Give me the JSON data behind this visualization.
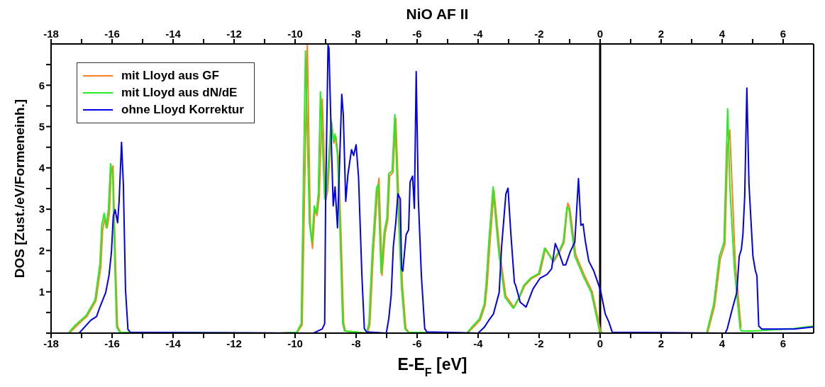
{
  "chart_data": {
    "type": "line",
    "title": "NiO AF II",
    "xlabel": "E-E$_{F}$ [eV]",
    "ylabel": "DOS [Zust./eV/Formeneinh.]",
    "xlim": [
      -18,
      7
    ],
    "ylim": [
      0,
      7
    ],
    "xticks": [
      -18,
      {
        "value": -17,
        "label": null
      },
      -16,
      {
        "value": -15,
        "label": null
      },
      -14,
      {
        "value": -13,
        "label": null
      },
      -12,
      {
        "value": -11,
        "label": null
      },
      -10,
      {
        "value": -9,
        "label": null
      },
      -8,
      {
        "value": -7,
        "label": null
      },
      -6,
      {
        "value": -5,
        "label": null
      },
      -4,
      {
        "value": -3,
        "label": null
      },
      -2,
      {
        "value": -1,
        "label": null
      },
      0,
      {
        "value": 1,
        "label": null
      },
      2,
      {
        "value": 3,
        "label": null
      },
      4,
      {
        "value": 5,
        "label": null
      },
      6
    ],
    "x2lim": [
      -18,
      7
    ],
    "x2ticks": [
      -18,
      {
        "value": -17,
        "label": null
      },
      -16,
      {
        "value": -15,
        "label": null
      },
      -14,
      {
        "value": -13,
        "label": null
      },
      -12,
      {
        "value": -11,
        "label": null
      },
      -10,
      {
        "value": -9,
        "label": null
      },
      -8,
      {
        "value": -7,
        "label": null
      },
      -6,
      {
        "value": -5,
        "label": null
      },
      -4,
      {
        "value": -3,
        "label": null
      },
      -2,
      {
        "value": -1,
        "label": null
      },
      0,
      {
        "value": 1,
        "label": null
      },
      2,
      {
        "value": 3,
        "label": null
      },
      4,
      {
        "value": 5,
        "label": null
      },
      6
    ],
    "yticks": [
      {
        "value": 0,
        "label": null
      },
      {
        "value": 0.5,
        "label": null
      },
      1,
      {
        "value": 1.5,
        "label": null
      },
      2,
      {
        "value": 2.5,
        "label": null
      },
      3,
      {
        "value": 3.5,
        "label": null
      },
      4,
      {
        "value": 4.5,
        "label": null
      },
      5,
      {
        "value": 5.5,
        "label": null
      },
      6,
      {
        "value": 6.5,
        "label": null
      }
    ],
    "grid": false,
    "legend": "top left",
    "ref_lines": [
      {
        "axis": "x",
        "value": 0,
        "label": null,
        "color": "#000000"
      }
    ],
    "series": [
      {
        "name": "mit Lloyd aus GF",
        "color": "#ff7f20",
        "x": [
          -18,
          -17.4,
          -17.2,
          -16.82,
          -16.53,
          -16.37,
          -16.31,
          -16.23,
          -16.16,
          -16.09,
          -16.03,
          -15.97,
          -15.88,
          -15.82,
          -15.72,
          -10.5,
          -9.93,
          -9.77,
          -9.6,
          -9.5,
          -9.43,
          -9.35,
          -9.28,
          -9.21,
          -9.11,
          -9.0,
          -8.93,
          -8.8,
          -8.73,
          -8.66,
          -8.58,
          -8.49,
          -8.41,
          -8.35,
          -7.63,
          -7.55,
          -7.44,
          -7.3,
          -7.25,
          -7.15,
          -7.05,
          -6.96,
          -6.9,
          -6.79,
          -6.7,
          -6.6,
          -6.48,
          -6.37,
          -6.27,
          -4.34,
          -4.15,
          -3.93,
          -3.77,
          -3.7,
          -3.62,
          -3.48,
          -3.39,
          -3.28,
          -3.09,
          -2.82,
          -2.63,
          -2.47,
          -2.25,
          -1.98,
          -1.79,
          -1.52,
          -1.33,
          -1.18,
          -1.06,
          -0.99,
          -0.8,
          -0.53,
          -0.26,
          0.01,
          0.08,
          3.52,
          3.75,
          3.94,
          4.09,
          4.18,
          4.25,
          4.43,
          4.62
        ],
        "values": [
          0,
          0,
          0.15,
          0.41,
          0.78,
          1.6,
          2.5,
          2.8,
          2.55,
          2.9,
          3.9,
          4.05,
          1.5,
          0.16,
          0.02,
          0,
          0.02,
          0.2,
          7.0,
          2.6,
          2.05,
          3.0,
          2.85,
          3.3,
          5.67,
          3.2,
          3.45,
          5.1,
          4.6,
          4.75,
          4.25,
          2.3,
          0.25,
          0.05,
          0,
          0.2,
          1.9,
          3.45,
          3.75,
          1.4,
          2.4,
          2.75,
          3.8,
          3.9,
          5.2,
          3.2,
          1.15,
          0.12,
          0.02,
          0,
          0.15,
          0.32,
          0.68,
          1.2,
          2.1,
          3.45,
          2.75,
          1.9,
          0.9,
          0.62,
          0.88,
          1.15,
          1.32,
          1.43,
          2.05,
          1.73,
          1.96,
          2.2,
          3.15,
          3.0,
          1.9,
          1.42,
          1.0,
          0.07,
          0,
          0,
          0.65,
          1.8,
          2.15,
          4.5,
          4.92,
          1.7,
          0.13
        ]
      },
      {
        "name": "mit Lloyd aus dN/dE",
        "color": "#22ee22",
        "x": [
          -18,
          -17.43,
          -17.24,
          -16.85,
          -16.56,
          -16.4,
          -16.34,
          -16.26,
          -16.19,
          -16.12,
          -16.05,
          -15.98,
          -15.9,
          -15.85,
          -15.75,
          -10.5,
          -9.95,
          -9.8,
          -9.66,
          -9.53,
          -9.45,
          -9.37,
          -9.3,
          -9.24,
          -9.17,
          -9.03,
          -8.96,
          -8.82,
          -8.75,
          -8.69,
          -8.61,
          -8.52,
          -8.44,
          -8.38,
          -7.66,
          -7.58,
          -7.47,
          -7.33,
          -7.28,
          -7.18,
          -7.08,
          -6.99,
          -6.93,
          -6.82,
          -6.73,
          -6.63,
          -6.51,
          -6.4,
          -6.3,
          -4.37,
          -4.18,
          -3.96,
          -3.8,
          -3.73,
          -3.65,
          -3.51,
          -3.42,
          -3.31,
          -3.12,
          -2.85,
          -2.66,
          -2.5,
          -2.28,
          -2.01,
          -1.82,
          -1.55,
          -1.36,
          -1.21,
          -1.09,
          -1.02,
          -0.83,
          -0.56,
          -0.29,
          -0.02,
          0.05,
          3.49,
          3.72,
          3.91,
          4.06,
          4.18,
          4.25,
          4.4,
          4.59,
          4.63,
          5.04,
          6.35,
          7.0
        ],
        "values": [
          0,
          0,
          0.17,
          0.43,
          0.8,
          1.68,
          2.6,
          2.9,
          2.55,
          3.0,
          4.1,
          3.83,
          1.4,
          0.14,
          0.02,
          0,
          0.02,
          0.23,
          6.83,
          2.67,
          2.2,
          3.08,
          2.9,
          3.37,
          5.84,
          3.25,
          3.49,
          5.17,
          4.65,
          4.82,
          4.3,
          2.27,
          0.23,
          0.05,
          0,
          0.23,
          1.97,
          3.51,
          3.6,
          1.45,
          2.44,
          2.79,
          3.86,
          3.93,
          5.29,
          3.14,
          1.1,
          0.11,
          0.02,
          0,
          0.17,
          0.34,
          0.7,
          1.27,
          2.2,
          3.54,
          2.73,
          1.86,
          0.87,
          0.6,
          0.87,
          1.16,
          1.33,
          1.45,
          2.06,
          1.74,
          1.97,
          2.2,
          3.05,
          3.0,
          1.86,
          1.39,
          0.98,
          0.05,
          0,
          0,
          0.69,
          1.86,
          2.2,
          5.43,
          3.6,
          1.56,
          0.11,
          0.05,
          0.05,
          0.11,
          0.17
        ]
      },
      {
        "name": "ohne Lloyd Korrektur",
        "color": "#0000ee",
        "x": [
          -18,
          -17.08,
          -16.7,
          -16.51,
          -16.4,
          -16.21,
          -16.1,
          -16.02,
          -15.96,
          -15.9,
          -15.82,
          -15.77,
          -15.69,
          -15.63,
          -15.56,
          -15.48,
          -15.4,
          -9.4,
          -9.11,
          -9.03,
          -9.0,
          -8.92,
          -8.89,
          -8.8,
          -8.75,
          -8.69,
          -8.61,
          -8.47,
          -8.42,
          -8.34,
          -8.27,
          -8.15,
          -8.08,
          -8.0,
          -7.92,
          -7.81,
          -7.73,
          -7.66,
          -7.01,
          -6.93,
          -6.85,
          -6.78,
          -6.7,
          -6.63,
          -6.55,
          -6.51,
          -6.47,
          -6.36,
          -6.28,
          -6.23,
          -6.15,
          -6.09,
          -6.03,
          -5.96,
          -5.86,
          -5.75,
          -5.68,
          -4.0,
          -3.8,
          -3.65,
          -3.5,
          -3.31,
          -3.23,
          -3.09,
          -3.02,
          -2.93,
          -2.81,
          -2.77,
          -2.62,
          -2.43,
          -2.2,
          -1.97,
          -1.74,
          -1.59,
          -1.47,
          -1.36,
          -1.21,
          -1.13,
          -0.98,
          -0.83,
          -0.71,
          -0.63,
          -0.56,
          -0.48,
          -0.37,
          -0.21,
          0.01,
          0.17,
          0.28,
          0.4,
          4.1,
          4.17,
          4.33,
          4.48,
          4.56,
          4.63,
          4.68,
          4.74,
          4.81,
          4.88,
          5.01,
          5.09,
          5.14,
          5.2,
          5.3,
          6.35,
          7.0
        ],
        "values": [
          0,
          0,
          0.31,
          0.4,
          0.63,
          0.98,
          1.4,
          1.97,
          2.84,
          2.99,
          2.67,
          3.19,
          4.62,
          3.6,
          1.05,
          0.09,
          0.02,
          0,
          0.1,
          0.23,
          3.14,
          6.97,
          6.9,
          4.3,
          3.08,
          3.54,
          2.55,
          5.78,
          5.29,
          3.19,
          3.83,
          4.44,
          4.3,
          4.56,
          3.77,
          1.39,
          0.11,
          0.03,
          0,
          0.34,
          0.92,
          2.09,
          2.67,
          3.37,
          3.25,
          1.56,
          1.5,
          2.38,
          2.5,
          3.66,
          3.8,
          3.02,
          6.33,
          3.25,
          1.39,
          0.11,
          0.03,
          0,
          0.14,
          0.31,
          0.46,
          0.98,
          2.09,
          3.37,
          3.51,
          2.44,
          1.22,
          1.16,
          0.75,
          0.63,
          1.07,
          1.33,
          1.42,
          1.56,
          2.17,
          1.97,
          1.65,
          1.65,
          1.97,
          2.2,
          3.74,
          2.61,
          2.64,
          2.2,
          1.74,
          1.51,
          1.04,
          0.46,
          0.28,
          0.02,
          0,
          0.11,
          0.58,
          0.98,
          1.86,
          2.03,
          2.38,
          3.31,
          5.93,
          3.6,
          1.86,
          1.51,
          1.39,
          0.17,
          0.1,
          0.1,
          0.15
        ]
      }
    ]
  }
}
